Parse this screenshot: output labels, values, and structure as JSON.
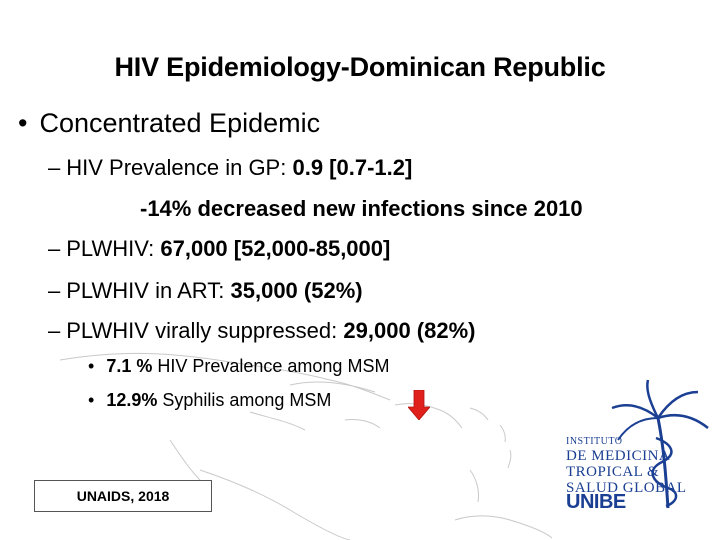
{
  "slide": {
    "title": "HIV Epidemiology-Dominican Republic",
    "bullet1": "Concentrated Epidemic",
    "sub1": {
      "label": "HIV Prevalence in GP: ",
      "value": "0.9 [0.7-1.2]"
    },
    "note1": "-14% decreased new infections since 2010",
    "sub2": {
      "label": "PLWHIV: ",
      "value": "67,000 [52,000-85,000]"
    },
    "sub3": {
      "label": "PLWHIV in ART: ",
      "value": "35,000  (52%)"
    },
    "sub4": {
      "label": "PLWHIV virally suppressed: ",
      "value": "29,000  (82%)"
    },
    "sub5": {
      "value": "7.1 %",
      "label": " HIV Prevalence among MSM"
    },
    "sub6": {
      "value": "12.9%",
      "label": " Syphilis among MSM"
    },
    "source": "UNAIDS, 2018"
  },
  "logo": {
    "line1": "INSTITUTO",
    "line2": "DE MEDICINA",
    "line3": "TROPICAL &",
    "line4": "SALUD GLOBAL",
    "brand": "UNIBE"
  },
  "colors": {
    "arrow": "#e0201b",
    "logo": "#1b3f93",
    "map": "#c9c9c9"
  },
  "icons": {
    "arrow": "arrow-down-icon",
    "map": "caribbean-map",
    "logo": "palm-caduceus-logo"
  }
}
